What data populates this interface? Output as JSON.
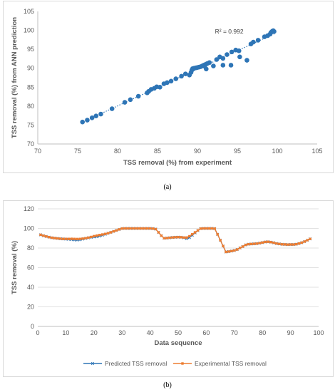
{
  "captions": {
    "a": "(a)",
    "b": "(b)"
  },
  "colors": {
    "scatter": "#2e75b6",
    "predicted": "#2e75b6",
    "experimental": "#ed7d31",
    "grid": "#d9d9d9",
    "axis_text": "#595959"
  },
  "chart_data": [
    {
      "type": "scatter",
      "xlabel": "TSS removal (%) from experiment",
      "ylabel": "TSS removal (%) from ANN prediction",
      "xlim": [
        70,
        105
      ],
      "ylim": [
        70,
        105
      ],
      "xticks": [
        70,
        75,
        80,
        85,
        90,
        95,
        100,
        105
      ],
      "yticks": [
        70,
        75,
        80,
        85,
        90,
        95,
        100,
        105
      ],
      "grid": "none",
      "annotation": "R² = 0.992",
      "trendline": "linear, dotted",
      "points": [
        [
          75.6,
          75.8
        ],
        [
          76.2,
          76.3
        ],
        [
          76.8,
          76.9
        ],
        [
          77.3,
          77.4
        ],
        [
          77.9,
          77.9
        ],
        [
          79.3,
          79.3
        ],
        [
          80.9,
          81.0
        ],
        [
          81.6,
          81.7
        ],
        [
          82.6,
          82.6
        ],
        [
          83.7,
          83.5
        ],
        [
          83.9,
          83.9
        ],
        [
          84.2,
          84.4
        ],
        [
          84.6,
          84.7
        ],
        [
          84.9,
          85.1
        ],
        [
          85.3,
          85.0
        ],
        [
          85.8,
          85.9
        ],
        [
          86.2,
          86.2
        ],
        [
          86.7,
          86.6
        ],
        [
          87.3,
          87.2
        ],
        [
          88.0,
          87.9
        ],
        [
          88.5,
          88.5
        ],
        [
          89.0,
          88.2
        ],
        [
          89.2,
          88.9
        ],
        [
          89.3,
          89.5
        ],
        [
          89.4,
          89.9
        ],
        [
          89.6,
          90.0
        ],
        [
          89.8,
          90.1
        ],
        [
          90.0,
          90.2
        ],
        [
          90.2,
          90.3
        ],
        [
          90.4,
          90.4
        ],
        [
          90.6,
          90.6
        ],
        [
          90.8,
          90.8
        ],
        [
          91.0,
          91.0
        ],
        [
          91.2,
          91.2
        ],
        [
          90.9,
          90.5
        ],
        [
          91.1,
          89.8
        ],
        [
          91.5,
          91.5
        ],
        [
          92.0,
          90.6
        ],
        [
          92.4,
          92.3
        ],
        [
          92.8,
          93.0
        ],
        [
          93.2,
          92.6
        ],
        [
          93.2,
          90.8
        ],
        [
          93.7,
          93.6
        ],
        [
          94.2,
          90.8
        ],
        [
          94.3,
          94.3
        ],
        [
          94.8,
          94.8
        ],
        [
          95.2,
          94.6
        ],
        [
          95.3,
          93.0
        ],
        [
          96.2,
          92.1
        ],
        [
          96.7,
          96.4
        ],
        [
          97.0,
          96.9
        ],
        [
          97.6,
          97.4
        ],
        [
          98.4,
          98.3
        ],
        [
          98.8,
          98.6
        ],
        [
          99.1,
          99.0
        ],
        [
          99.2,
          99.4
        ],
        [
          99.3,
          99.6
        ],
        [
          99.4,
          99.8
        ],
        [
          99.5,
          99.9
        ],
        [
          99.6,
          99.7
        ]
      ]
    },
    {
      "type": "line",
      "xlabel": "Data sequence",
      "ylabel": "TSS removal (%)",
      "xlim": [
        0,
        100
      ],
      "ylim": [
        0,
        120
      ],
      "xticks": [
        0,
        10,
        20,
        30,
        40,
        50,
        60,
        70,
        80,
        90,
        100
      ],
      "yticks": [
        0,
        20,
        40,
        60,
        80,
        100,
        120
      ],
      "grid": "horizontal",
      "legend": "bottom",
      "series": [
        {
          "name": "Predicted TSS removal",
          "values": [
            93.5,
            92.6,
            91.8,
            91.1,
            90.5,
            90.1,
            89.8,
            89.5,
            89.3,
            89.1,
            88.9,
            88.7,
            88.3,
            88.2,
            88.5,
            89.1,
            89.8,
            90.4,
            90.9,
            91.3,
            91.6,
            92.2,
            93.0,
            94.0,
            95.0,
            96.0,
            97.0,
            98.0,
            99.0,
            99.9,
            100,
            100,
            100,
            100,
            100,
            100,
            100,
            100,
            100,
            100,
            99.8,
            99.3,
            96.0,
            92.6,
            90.0,
            90.2,
            90.5,
            90.8,
            91.0,
            91.1,
            91.0,
            90.5,
            89.6,
            90.7,
            93.0,
            95.5,
            97.8,
            99.8,
            100,
            100,
            100,
            100,
            99.8,
            94.0,
            88.0,
            82.0,
            76.0,
            76.4,
            76.9,
            77.5,
            78.5,
            80.1,
            81.5,
            83.2,
            83.9,
            84.1,
            84.3,
            84.5,
            85.0,
            85.6,
            86.2,
            86.4,
            86.0,
            85.4,
            84.6,
            84.2,
            83.8,
            83.7,
            83.5,
            83.6,
            83.6,
            83.9,
            84.6,
            85.5,
            86.6,
            88.0,
            89.3
          ]
        },
        {
          "name": "Experimental TSS removal",
          "values": [
            93.5,
            92.6,
            91.8,
            91.1,
            90.5,
            90.1,
            89.8,
            89.5,
            89.3,
            89.3,
            89.3,
            89.4,
            89.3,
            89.2,
            89.3,
            89.6,
            90.0,
            90.6,
            91.3,
            92.1,
            92.7,
            93.3,
            93.8,
            94.4,
            95.1,
            96.0,
            97.0,
            98.0,
            99.0,
            99.9,
            100,
            100,
            100,
            100,
            100,
            100,
            100,
            100,
            100,
            100,
            99.8,
            99.3,
            96.0,
            92.6,
            90.0,
            90.2,
            90.5,
            90.8,
            91.0,
            91.1,
            91.0,
            90.7,
            90.7,
            92.0,
            94.0,
            96.0,
            98.0,
            99.8,
            100,
            100,
            100,
            100,
            99.8,
            94.0,
            88.0,
            82.0,
            76.0,
            76.4,
            76.9,
            77.5,
            78.5,
            80.1,
            81.5,
            83.2,
            83.9,
            84.1,
            84.3,
            84.5,
            85.0,
            85.6,
            86.2,
            86.4,
            86.0,
            85.4,
            84.6,
            84.2,
            83.8,
            83.7,
            83.5,
            83.6,
            83.6,
            83.9,
            84.6,
            85.5,
            86.6,
            88.0,
            89.3
          ]
        }
      ]
    }
  ]
}
